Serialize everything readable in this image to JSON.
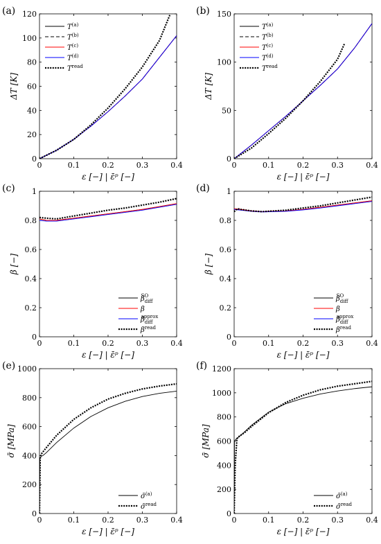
{
  "chart_data": [
    {
      "panel": "(a)",
      "type": "line",
      "xlabel": "ε [−] | ε̄ᵖ [−]",
      "ylabel": "ΔT [K]",
      "xlim": [
        0,
        0.4
      ],
      "ylim": [
        0,
        120
      ],
      "xticks": [
        "0",
        "0.1",
        "0.2",
        "0.3",
        "0.4"
      ],
      "yticks": [
        "0",
        "20",
        "40",
        "60",
        "80",
        "100",
        "120"
      ],
      "legend_position": "top-left",
      "series": [
        {
          "name": "T",
          "sup": "(a)",
          "color": "#000000",
          "style": "solid",
          "x": [
            0,
            0.05,
            0.1,
            0.15,
            0.2,
            0.25,
            0.3,
            0.35,
            0.4
          ],
          "y": [
            0,
            7,
            16,
            27,
            39,
            52,
            66,
            84,
            102
          ]
        },
        {
          "name": "T",
          "sup": "(b)",
          "color": "#000000",
          "style": "dashed",
          "x": [
            0,
            0.05,
            0.1,
            0.15,
            0.2,
            0.25,
            0.3,
            0.35,
            0.4
          ],
          "y": [
            0,
            7,
            16,
            27,
            39,
            52,
            66,
            84,
            102
          ]
        },
        {
          "name": "T",
          "sup": "(c)",
          "color": "#ff0000",
          "style": "solid",
          "x": [
            0,
            0.05,
            0.1,
            0.15,
            0.2,
            0.25,
            0.3,
            0.35,
            0.4
          ],
          "y": [
            0,
            7,
            16,
            27,
            39,
            52,
            66,
            84,
            102
          ]
        },
        {
          "name": "T",
          "sup": "(d)",
          "color": "#0000ff",
          "style": "solid",
          "x": [
            0,
            0.05,
            0.1,
            0.15,
            0.2,
            0.25,
            0.3,
            0.35,
            0.4
          ],
          "y": [
            0,
            7,
            16,
            27,
            39,
            52,
            66,
            84,
            102
          ]
        },
        {
          "name": "T",
          "sup": "read",
          "color": "#000000",
          "style": "dotted",
          "x": [
            0,
            0.05,
            0.1,
            0.15,
            0.2,
            0.25,
            0.3,
            0.35,
            0.38
          ],
          "y": [
            0,
            7,
            16,
            28,
            42,
            58,
            76,
            98,
            119
          ]
        }
      ]
    },
    {
      "panel": "(b)",
      "type": "line",
      "xlabel": "ε [−] | ε̄ᵖ [−]",
      "ylabel": "ΔT [K]",
      "xlim": [
        0,
        0.4
      ],
      "ylim": [
        0,
        150
      ],
      "xticks": [
        "0",
        "0.1",
        "0.2",
        "0.3",
        "0.4"
      ],
      "yticks": [
        "0",
        "50",
        "100",
        "150"
      ],
      "legend_position": "top-left",
      "series": [
        {
          "name": "T",
          "sup": "(a)",
          "color": "#000000",
          "style": "solid",
          "x": [
            0,
            0.05,
            0.1,
            0.15,
            0.2,
            0.25,
            0.3,
            0.35,
            0.4
          ],
          "y": [
            0,
            14,
            29,
            44,
            60,
            76,
            93,
            115,
            140
          ]
        },
        {
          "name": "T",
          "sup": "(b)",
          "color": "#000000",
          "style": "dashed",
          "x": [
            0,
            0.05,
            0.1,
            0.15,
            0.2,
            0.25,
            0.3,
            0.35,
            0.4
          ],
          "y": [
            0,
            14,
            29,
            44,
            60,
            76,
            93,
            115,
            140
          ]
        },
        {
          "name": "T",
          "sup": "(c)",
          "color": "#ff0000",
          "style": "solid",
          "x": [
            0,
            0.05,
            0.1,
            0.15,
            0.2,
            0.25,
            0.3,
            0.35,
            0.4
          ],
          "y": [
            0,
            14,
            29,
            44,
            60,
            76,
            93,
            115,
            140
          ]
        },
        {
          "name": "T",
          "sup": "(d)",
          "color": "#0000ff",
          "style": "solid",
          "x": [
            0,
            0.05,
            0.1,
            0.15,
            0.2,
            0.25,
            0.3,
            0.35,
            0.4
          ],
          "y": [
            0,
            14,
            29,
            44,
            60,
            76,
            93,
            115,
            140
          ]
        },
        {
          "name": "T",
          "sup": "read",
          "color": "#000000",
          "style": "dotted",
          "x": [
            0,
            0.05,
            0.1,
            0.15,
            0.2,
            0.25,
            0.3,
            0.32
          ],
          "y": [
            0,
            11,
            26,
            42,
            60,
            80,
            103,
            119
          ]
        }
      ]
    },
    {
      "panel": "(c)",
      "type": "line",
      "xlabel": "ε [−] | ε̄ᵖ [−]",
      "ylabel": "β [−]",
      "xlim": [
        0,
        0.4
      ],
      "ylim": [
        0,
        1
      ],
      "xticks": [
        "0",
        "0.1",
        "0.2",
        "0.3",
        "0.4"
      ],
      "yticks": [
        "0",
        "0.2",
        "0.4",
        "0.6",
        "0.8",
        "1"
      ],
      "legend_position": "bottom-right",
      "series": [
        {
          "name": "β",
          "sup": "SO",
          "sub": "diff",
          "color": "#000000",
          "style": "solid",
          "x": [
            0,
            0.02,
            0.05,
            0.1,
            0.15,
            0.2,
            0.25,
            0.3,
            0.35,
            0.4
          ],
          "y": [
            0.81,
            0.8,
            0.8,
            0.815,
            0.83,
            0.845,
            0.86,
            0.875,
            0.895,
            0.915
          ]
        },
        {
          "name": "β",
          "color": "#ff0000",
          "style": "solid",
          "x": [
            0,
            0.02,
            0.05,
            0.1,
            0.15,
            0.2,
            0.25,
            0.3,
            0.35,
            0.4
          ],
          "y": [
            0.81,
            0.8,
            0.8,
            0.815,
            0.83,
            0.845,
            0.86,
            0.875,
            0.895,
            0.915
          ]
        },
        {
          "name": "β",
          "sup": "approx",
          "sub": "diff",
          "color": "#0000ff",
          "style": "solid",
          "x": [
            0,
            0.02,
            0.05,
            0.1,
            0.15,
            0.2,
            0.25,
            0.3,
            0.35,
            0.4
          ],
          "y": [
            0.8,
            0.795,
            0.795,
            0.81,
            0.825,
            0.84,
            0.855,
            0.87,
            0.89,
            0.91
          ]
        },
        {
          "name": "β",
          "sup": "read",
          "color": "#000000",
          "style": "dotted",
          "x": [
            0,
            0.02,
            0.05,
            0.1,
            0.15,
            0.2,
            0.25,
            0.3,
            0.35,
            0.4
          ],
          "y": [
            0.82,
            0.815,
            0.81,
            0.83,
            0.85,
            0.87,
            0.885,
            0.905,
            0.925,
            0.95
          ]
        }
      ]
    },
    {
      "panel": "(d)",
      "type": "line",
      "xlabel": "ε [−] | ε̄ᵖ [−]",
      "ylabel": "β [−]",
      "xlim": [
        0,
        0.4
      ],
      "ylim": [
        0,
        1
      ],
      "xticks": [
        "0",
        "0.1",
        "0.2",
        "0.3",
        "0.4"
      ],
      "yticks": [
        "0",
        "0.2",
        "0.4",
        "0.6",
        "0.8",
        "1"
      ],
      "legend_position": "bottom-right",
      "series": [
        {
          "name": "β",
          "sup": "SO",
          "sub": "diff",
          "color": "#000000",
          "style": "solid",
          "x": [
            0,
            0.02,
            0.05,
            0.08,
            0.15,
            0.2,
            0.25,
            0.3,
            0.35,
            0.4
          ],
          "y": [
            0.88,
            0.875,
            0.865,
            0.86,
            0.865,
            0.875,
            0.89,
            0.905,
            0.92,
            0.935
          ]
        },
        {
          "name": "β",
          "color": "#ff0000",
          "style": "solid",
          "x": [
            0,
            0.02,
            0.05,
            0.08,
            0.15,
            0.2,
            0.25,
            0.3,
            0.35,
            0.4
          ],
          "y": [
            0.88,
            0.875,
            0.865,
            0.86,
            0.865,
            0.875,
            0.89,
            0.905,
            0.92,
            0.935
          ]
        },
        {
          "name": "β",
          "sup": "approx",
          "sub": "diff",
          "color": "#0000ff",
          "style": "solid",
          "x": [
            0,
            0.02,
            0.05,
            0.08,
            0.15,
            0.2,
            0.25,
            0.3,
            0.35,
            0.4
          ],
          "y": [
            0.875,
            0.87,
            0.862,
            0.858,
            0.862,
            0.872,
            0.885,
            0.9,
            0.915,
            0.93
          ]
        },
        {
          "name": "β",
          "sup": "read",
          "color": "#000000",
          "style": "dotted",
          "x": [
            0,
            0.01,
            0.02,
            0.05,
            0.08,
            0.15,
            0.2,
            0.25,
            0.3,
            0.35,
            0.4
          ],
          "y": [
            0.86,
            0.88,
            0.875,
            0.865,
            0.86,
            0.87,
            0.885,
            0.9,
            0.92,
            0.94,
            0.96
          ]
        }
      ]
    },
    {
      "panel": "(e)",
      "type": "line",
      "xlabel": "ε [−] | ε̄ᵖ [−]",
      "ylabel": "σ̄ [MPa]",
      "xlim": [
        0,
        0.4
      ],
      "ylim": [
        0,
        1000
      ],
      "xticks": [
        "0",
        "0.1",
        "0.2",
        "0.3",
        "0.4"
      ],
      "yticks": [
        "0",
        "200",
        "400",
        "600",
        "800",
        "1000"
      ],
      "legend_position": "bottom-right",
      "series": [
        {
          "name": "σ̄",
          "sup": "(a)",
          "color": "#000000",
          "style": "solid",
          "x": [
            0,
            0.001,
            0.005,
            0.01,
            0.02,
            0.05,
            0.1,
            0.15,
            0.2,
            0.25,
            0.3,
            0.35,
            0.4
          ],
          "y": [
            0,
            380,
            395,
            400,
            420,
            490,
            590,
            670,
            730,
            775,
            808,
            830,
            845
          ]
        },
        {
          "name": "σ̄",
          "sup": "read",
          "color": "#000000",
          "style": "dotted",
          "x": [
            0,
            0.002,
            0.005,
            0.01,
            0.02,
            0.05,
            0.1,
            0.15,
            0.2,
            0.25,
            0.3,
            0.35,
            0.4
          ],
          "y": [
            0,
            380,
            410,
            425,
            455,
            540,
            650,
            730,
            790,
            830,
            860,
            880,
            895
          ]
        }
      ]
    },
    {
      "panel": "(f)",
      "type": "line",
      "xlabel": "ε [−] | ε̄ᵖ [−]",
      "ylabel": "σ̄ [MPa]",
      "xlim": [
        0,
        0.4
      ],
      "ylim": [
        0,
        1200
      ],
      "xticks": [
        "0",
        "0.1",
        "0.2",
        "0.3",
        "0.4"
      ],
      "yticks": [
        "0",
        "200",
        "400",
        "600",
        "800",
        "1000",
        "1200"
      ],
      "legend_position": "bottom-right",
      "series": [
        {
          "name": "σ̄",
          "sup": "(a)",
          "color": "#000000",
          "style": "solid",
          "x": [
            0,
            0.001,
            0.005,
            0.01,
            0.02,
            0.05,
            0.1,
            0.15,
            0.2,
            0.25,
            0.3,
            0.35,
            0.4
          ],
          "y": [
            0,
            600,
            615,
            625,
            650,
            730,
            840,
            910,
            955,
            990,
            1015,
            1035,
            1050
          ]
        },
        {
          "name": "σ̄",
          "sup": "read",
          "color": "#000000",
          "style": "dotted",
          "x": [
            0,
            0.003,
            0.008,
            0.015,
            0.03,
            0.05,
            0.1,
            0.15,
            0.2,
            0.25,
            0.3,
            0.35,
            0.4
          ],
          "y": [
            0,
            400,
            620,
            640,
            670,
            720,
            835,
            920,
            980,
            1025,
            1055,
            1075,
            1095
          ]
        }
      ]
    }
  ]
}
